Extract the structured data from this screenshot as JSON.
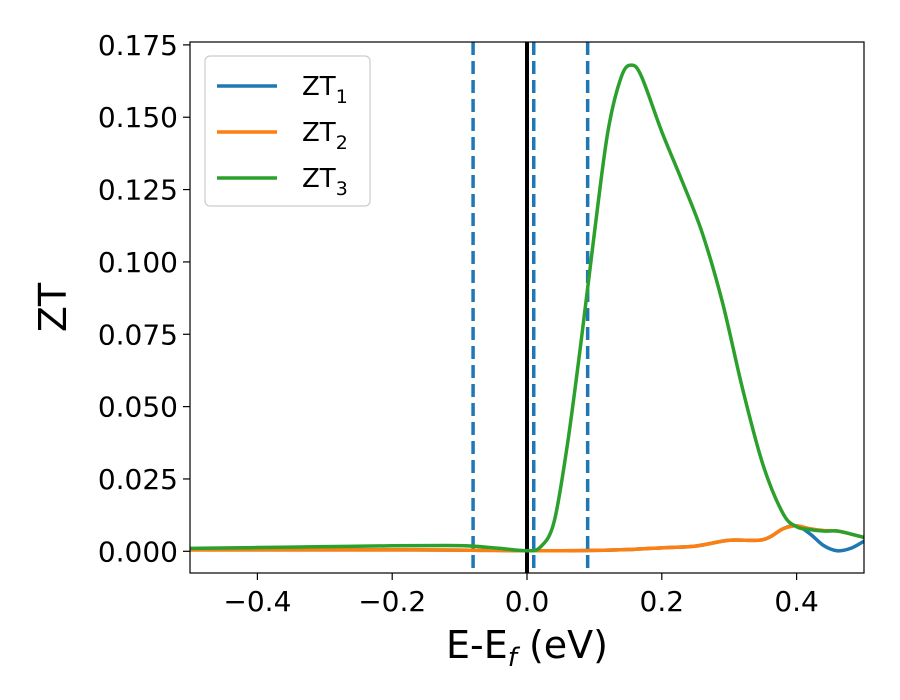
{
  "chart_data": {
    "type": "line",
    "title": "",
    "xlabel": "E-E",
    "xlabel_subscript": "f",
    "xlabel_suffix": " (eV)",
    "ylabel": "ZT",
    "xlim": [
      -0.5,
      0.5
    ],
    "ylim": [
      -0.0075,
      0.176
    ],
    "xticks": [
      -0.4,
      -0.2,
      0.0,
      0.2,
      0.4
    ],
    "xtick_labels": [
      "−0.4",
      "−0.2",
      "0.0",
      "0.2",
      "0.4"
    ],
    "yticks": [
      0.0,
      0.025,
      0.05,
      0.075,
      0.1,
      0.125,
      0.15,
      0.175
    ],
    "ytick_labels": [
      "0.000",
      "0.025",
      "0.050",
      "0.075",
      "0.100",
      "0.125",
      "0.150",
      "0.175"
    ],
    "grid": false,
    "legend_position": "top-left",
    "vertical_lines": [
      {
        "x": 0.0,
        "style": "solid",
        "color": "#000000"
      },
      {
        "x": -0.08,
        "style": "dashed",
        "color": "#1f77b4"
      },
      {
        "x": 0.01,
        "style": "dashed",
        "color": "#1f77b4"
      },
      {
        "x": 0.09,
        "style": "dashed",
        "color": "#1f77b4"
      }
    ],
    "series": [
      {
        "name": "ZT",
        "subscript": "1",
        "color": "#1f77b4",
        "x": [
          -0.5,
          -0.4,
          -0.3,
          -0.2,
          -0.1,
          -0.05,
          0.0,
          0.05,
          0.1,
          0.15,
          0.2,
          0.25,
          0.3,
          0.35,
          0.38,
          0.4,
          0.42,
          0.44,
          0.46,
          0.48,
          0.5
        ],
        "y": [
          0.0005,
          0.0005,
          0.0005,
          0.0005,
          0.0004,
          0.0003,
          0.0002,
          0.0002,
          0.0003,
          0.0006,
          0.0012,
          0.0018,
          0.0038,
          0.004,
          0.0078,
          0.0088,
          0.006,
          0.002,
          0.0002,
          0.001,
          0.0035
        ]
      },
      {
        "name": "ZT",
        "subscript": "2",
        "color": "#ff7f0e",
        "x": [
          -0.5,
          -0.4,
          -0.3,
          -0.2,
          -0.1,
          -0.05,
          0.0,
          0.05,
          0.1,
          0.15,
          0.2,
          0.25,
          0.3,
          0.35,
          0.38,
          0.4,
          0.42,
          0.44,
          0.46,
          0.48,
          0.5
        ],
        "y": [
          0.0005,
          0.0005,
          0.0005,
          0.0005,
          0.0004,
          0.0003,
          0.0002,
          0.0002,
          0.0003,
          0.0006,
          0.0012,
          0.0018,
          0.0038,
          0.004,
          0.0078,
          0.0088,
          0.0078,
          0.0072,
          0.007,
          0.006,
          0.0048
        ]
      },
      {
        "name": "ZT",
        "subscript": "3",
        "color": "#2ca02c",
        "x": [
          -0.5,
          -0.4,
          -0.3,
          -0.2,
          -0.12,
          -0.08,
          -0.04,
          0.0,
          0.02,
          0.04,
          0.06,
          0.08,
          0.1,
          0.12,
          0.14,
          0.155,
          0.17,
          0.2,
          0.23,
          0.26,
          0.29,
          0.32,
          0.35,
          0.38,
          0.4,
          0.42,
          0.44,
          0.46,
          0.48,
          0.5
        ],
        "y": [
          0.001,
          0.0013,
          0.0016,
          0.0019,
          0.002,
          0.0018,
          0.001,
          0.0002,
          0.0015,
          0.01,
          0.037,
          0.072,
          0.11,
          0.145,
          0.164,
          0.168,
          0.164,
          0.145,
          0.128,
          0.11,
          0.086,
          0.056,
          0.03,
          0.013,
          0.0085,
          0.0075,
          0.007,
          0.007,
          0.006,
          0.0048
        ]
      }
    ]
  }
}
